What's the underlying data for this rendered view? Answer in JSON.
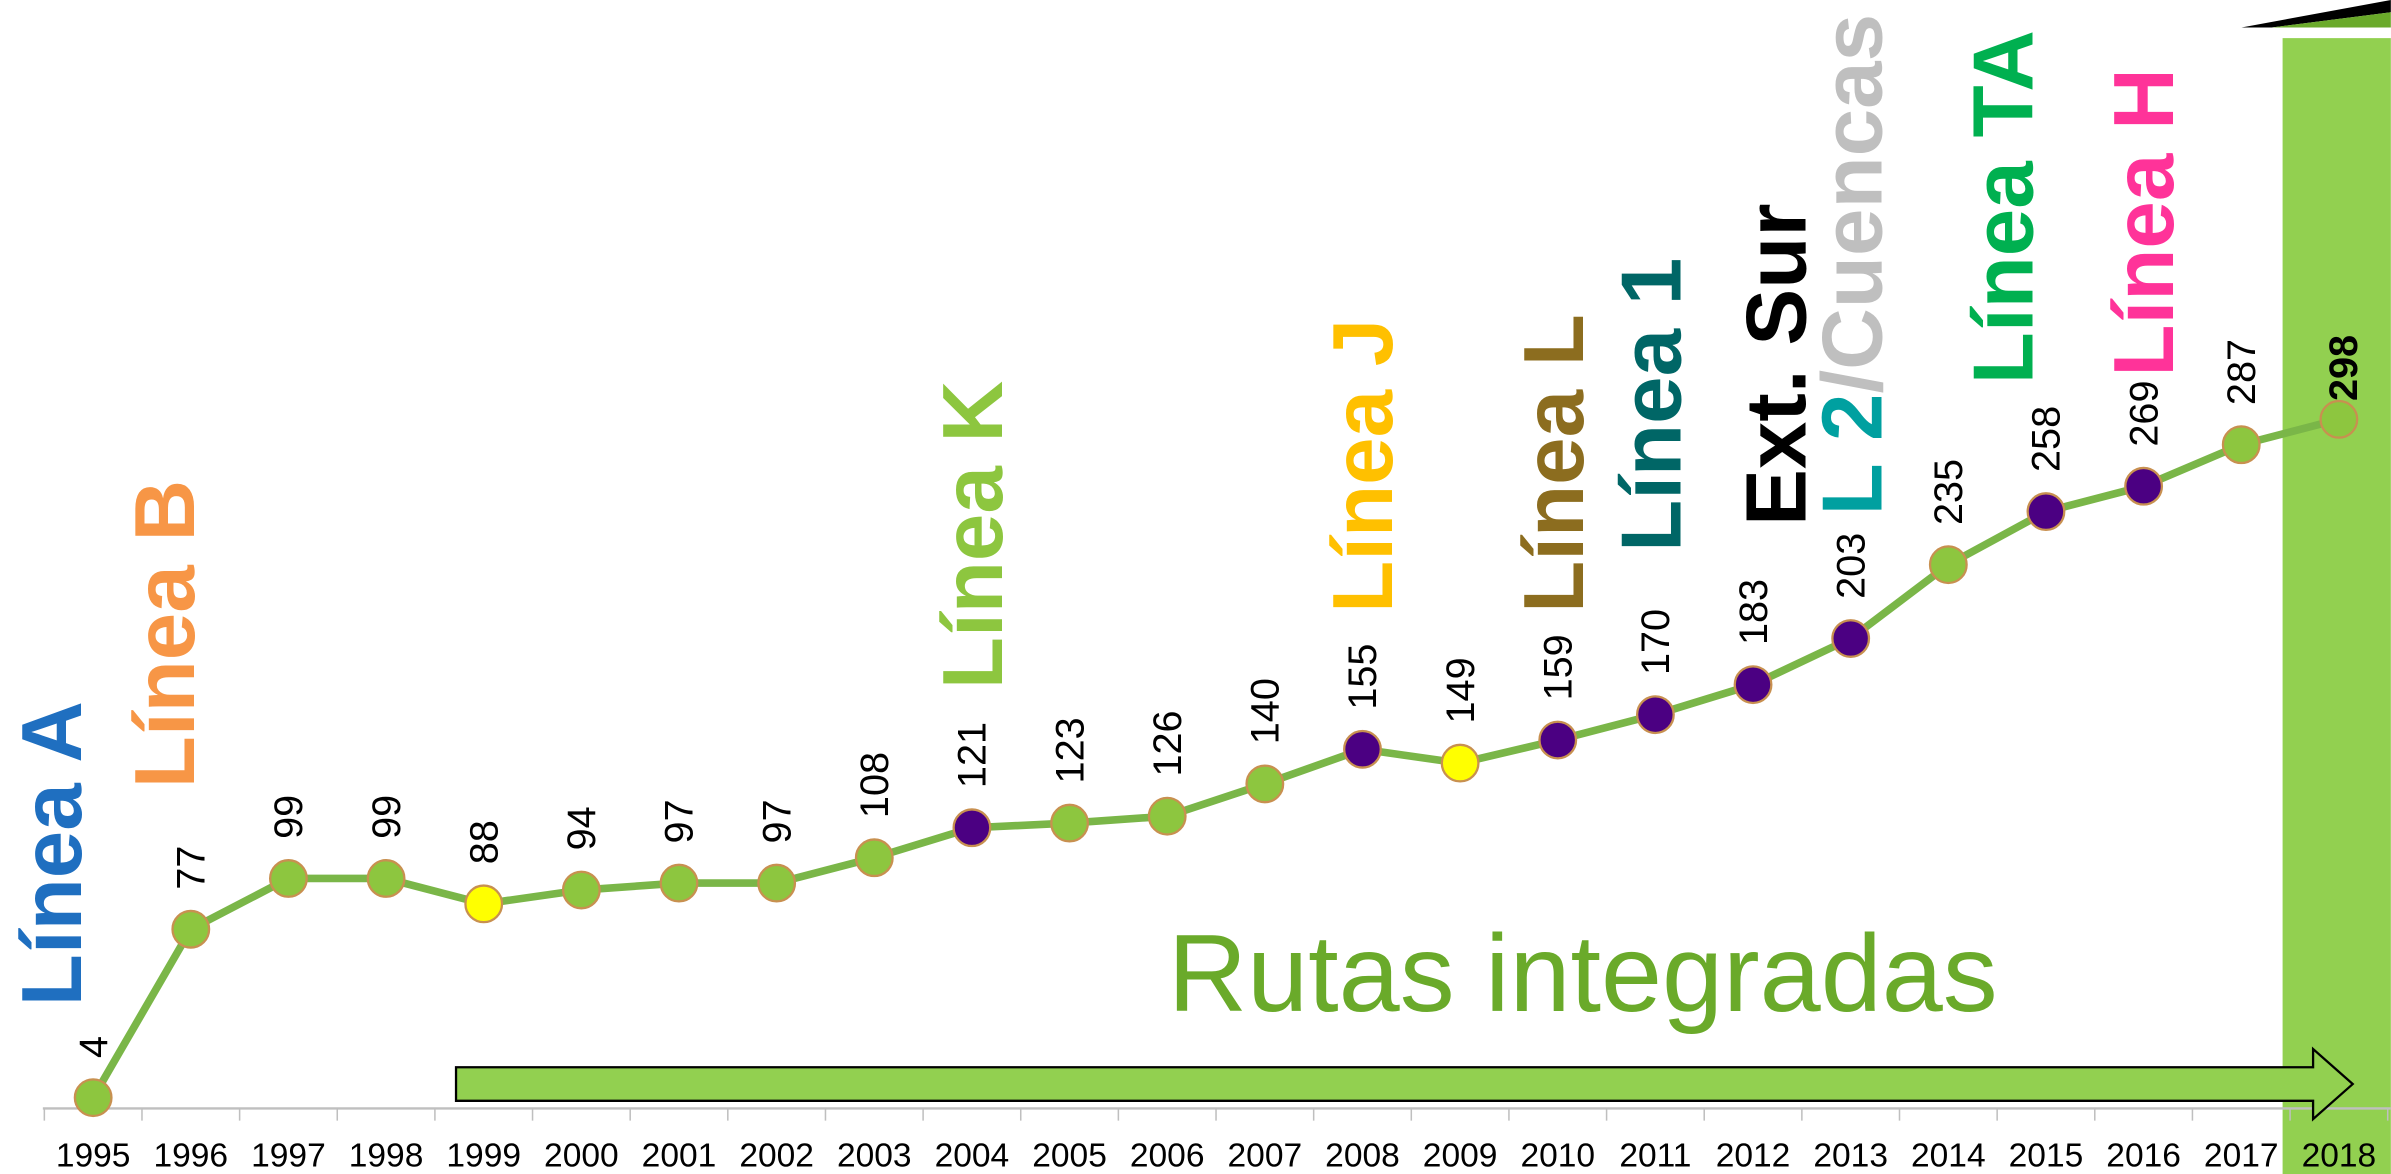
{
  "chart_data": {
    "type": "line",
    "categories": [
      "1995",
      "1996",
      "1997",
      "1998",
      "1999",
      "2000",
      "2001",
      "2002",
      "2003",
      "2004",
      "2005",
      "2006",
      "2007",
      "2008",
      "2009",
      "2010",
      "2011",
      "2012",
      "2013",
      "2014",
      "2015",
      "2016",
      "2017",
      "2018"
    ],
    "values": [
      4,
      77,
      99,
      99,
      88,
      94,
      97,
      97,
      108,
      121,
      123,
      126,
      140,
      155,
      149,
      159,
      170,
      183,
      203,
      235,
      258,
      269,
      287,
      298
    ],
    "line_color": "#7ab648",
    "point_colors": [
      "#8dc63f",
      "#8dc63f",
      "#8dc63f",
      "#8dc63f",
      "#ffff00",
      "#8dc63f",
      "#8dc63f",
      "#8dc63f",
      "#8dc63f",
      "#4b0082",
      "#8dc63f",
      "#8dc63f",
      "#8dc63f",
      "#4b0082",
      "#ffff00",
      "#4b0082",
      "#4b0082",
      "#4b0082",
      "#4b0082",
      "#8dc63f",
      "#4b0082",
      "#4b0082",
      "#8dc63f",
      "#8dc63f"
    ],
    "ylim": [
      0,
      300
    ],
    "annotations": [
      {
        "parts": [
          {
            "text": "Línea A",
            "color": "#1f6fc0"
          }
        ]
      },
      {
        "parts": [
          {
            "text": "Línea B",
            "color": "#f79646"
          }
        ]
      },
      {
        "parts": [
          {
            "text": "Línea K",
            "color": "#8dc63f"
          }
        ]
      },
      {
        "parts": [
          {
            "text": "Línea J",
            "color": "#ffc000"
          }
        ]
      },
      {
        "parts": [
          {
            "text": "Línea L",
            "color": "#8c6d1f"
          }
        ]
      },
      {
        "parts": [
          {
            "text": "Línea 1",
            "color": "#006666"
          }
        ]
      },
      {
        "parts": [
          {
            "text": "Ext. Sur",
            "color": "#000000"
          }
        ]
      },
      {
        "parts": [
          {
            "text": "L 2",
            "color": "#00a0a0"
          },
          {
            "text": "/Cuencas",
            "color": "#bfbfbf"
          }
        ]
      },
      {
        "parts": [
          {
            "text": "Línea TA",
            "color": "#00b050"
          }
        ]
      },
      {
        "parts": [
          {
            "text": "Línea H",
            "color": "#ff3399"
          }
        ]
      }
    ],
    "banner": {
      "text": "Rutas integradas",
      "color": "#6aaa2a"
    }
  }
}
